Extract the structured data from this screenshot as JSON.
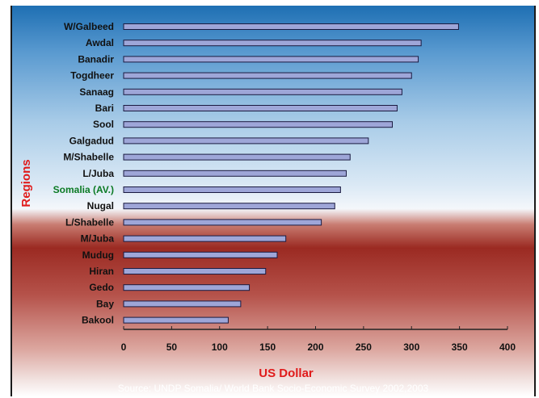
{
  "chart_data": {
    "type": "bar",
    "orientation": "horizontal",
    "categories": [
      "W/Galbeed",
      "Awdal",
      "Banadir",
      "Togdheer",
      "Sanaag",
      "Bari",
      "Sool",
      "Galgadud",
      "M/Shabelle",
      "L/Juba",
      "Somalia (AV.)",
      "Nugal",
      "L/Shabelle",
      "M/Juba",
      "Mudug",
      "Hiran",
      "Gedo",
      "Bay",
      "Bakool"
    ],
    "values": [
      349,
      310,
      307,
      300,
      290,
      285,
      280,
      255,
      236,
      232,
      226,
      220,
      206,
      169,
      160,
      148,
      131,
      122,
      109
    ],
    "highlight_category": "Somalia (AV.)",
    "xlabel": "US Dollar",
    "ylabel": "Regions",
    "xlim": [
      0,
      400
    ],
    "xticks": [
      0,
      50,
      100,
      150,
      200,
      250,
      300,
      350,
      400
    ],
    "grid": false,
    "source": "Source: UNDP Somalia/ World Bank Socio-Economic Survey 2002,2003",
    "colors": {
      "bar_fill": "#9ea6d8",
      "bar_stroke": "#1a1a40",
      "highlight_label": "#0b7a24",
      "axis_title": "#e01b1b"
    }
  }
}
